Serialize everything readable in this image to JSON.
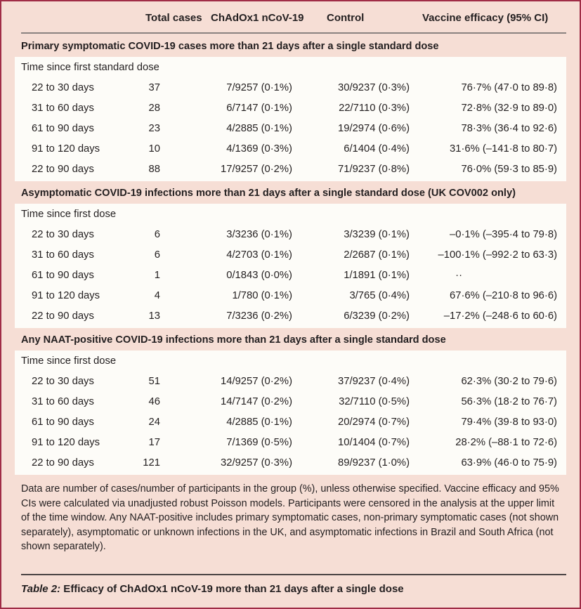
{
  "table": {
    "columns": [
      "",
      "Total cases",
      "ChAdOx1 nCoV-19",
      "Control",
      "Vaccine efficacy (95% CI)"
    ],
    "sections": [
      {
        "title": "Primary symptomatic COVID-19 cases more than 21 days after a single standard dose",
        "subhead": "Time since first standard dose",
        "rows": [
          {
            "label": "22 to 30 days",
            "total": "37",
            "vaccine": "7/9257 (0·1%)",
            "control": "30/9237 (0·3%)",
            "efficacy": "76·7% (47·0 to 89·8)"
          },
          {
            "label": "31 to 60 days",
            "total": "28",
            "vaccine": "6/7147 (0·1%)",
            "control": "22/7110 (0·3%)",
            "efficacy": "72·8% (32·9 to 89·0)"
          },
          {
            "label": "61 to 90 days",
            "total": "23",
            "vaccine": "4/2885 (0·1%)",
            "control": "19/2974 (0·6%)",
            "efficacy": "78·3% (36·4 to 92·6)"
          },
          {
            "label": "91 to 120 days",
            "total": "10",
            "vaccine": "4/1369 (0·3%)",
            "control": "6/1404 (0·4%)",
            "efficacy": "31·6% (–141·8 to 80·7)"
          },
          {
            "label": "22 to 90 days",
            "total": "88",
            "vaccine": "17/9257 (0·2%)",
            "control": "71/9237 (0·8%)",
            "efficacy": "76·0% (59·3 to 85·9)"
          }
        ]
      },
      {
        "title": "Asymptomatic COVID-19 infections more than 21 days after a single standard dose (UK COV002 only)",
        "subhead": "Time since first dose",
        "rows": [
          {
            "label": "22 to 30 days",
            "total": "6",
            "vaccine": "3/3236 (0·1%)",
            "control": "3/3239 (0·1%)",
            "efficacy": "–0·1% (–395·4 to 79·8)"
          },
          {
            "label": "31 to 60 days",
            "total": "6",
            "vaccine": "4/2703 (0·1%)",
            "control": "2/2687 (0·1%)",
            "efficacy": "–100·1% (–992·2 to 63·3)"
          },
          {
            "label": "61 to 90 days",
            "total": "1",
            "vaccine": "0/1843 (0·0%)",
            "control": "1/1891 (0·1%)",
            "efficacy": "··"
          },
          {
            "label": "91 to 120 days",
            "total": "4",
            "vaccine": "1/780 (0·1%)",
            "control": "3/765 (0·4%)",
            "efficacy": "67·6% (–210·8 to 96·6)"
          },
          {
            "label": "22 to 90 days",
            "total": "13",
            "vaccine": "7/3236 (0·2%)",
            "control": "6/3239 (0·2%)",
            "efficacy": "–17·2% (–248·6 to 60·6)"
          }
        ]
      },
      {
        "title": "Any NAAT-positive COVID-19 infections more than 21 days after a single standard dose",
        "subhead": "Time since first dose",
        "rows": [
          {
            "label": "22 to 30 days",
            "total": "51",
            "vaccine": "14/9257 (0·2%)",
            "control": "37/9237 (0·4%)",
            "efficacy": "62·3% (30·2 to 79·6)"
          },
          {
            "label": "31 to 60 days",
            "total": "46",
            "vaccine": "14/7147 (0·2%)",
            "control": "32/7110 (0·5%)",
            "efficacy": "56·3% (18·2 to 76·7)"
          },
          {
            "label": "61 to 90 days",
            "total": "24",
            "vaccine": "4/2885 (0·1%)",
            "control": "20/2974 (0·7%)",
            "efficacy": "79·4% (39·8 to 93·0)"
          },
          {
            "label": "91 to 120 days",
            "total": "17",
            "vaccine": "7/1369 (0·5%)",
            "control": "10/1404 (0·7%)",
            "efficacy": "28·2% (–88·1 to 72·6)"
          },
          {
            "label": "22 to 90 days",
            "total": "121",
            "vaccine": "32/9257 (0·3%)",
            "control": "89/9237 (1·0%)",
            "efficacy": "63·9% (46·0 to 75·9)"
          }
        ]
      }
    ],
    "footnote": "Data are number of cases/number of participants in the group (%), unless otherwise specified. Vaccine efficacy and 95% CIs were calculated via unadjusted robust Poisson models. Participants were censored in the analysis at the upper limit of the time window. Any NAAT-positive includes primary symptomatic cases, non-primary symptomatic cases (not shown separately), asymptomatic or unknown infections in the UK, and asymptomatic infections in Brazil and South Africa (not shown separately).",
    "caption": {
      "prefix": "Table 2:",
      "text": " Efficacy of ChAdOx1 nCoV-19 more than 21 days after a single dose"
    }
  },
  "colors": {
    "card_background": "#f6ded5",
    "border": "#a02c46",
    "row_background": "#fdfcf8",
    "text": "#231f20",
    "header_rule": "#8a8280",
    "caption_rule": "#4a4444"
  }
}
